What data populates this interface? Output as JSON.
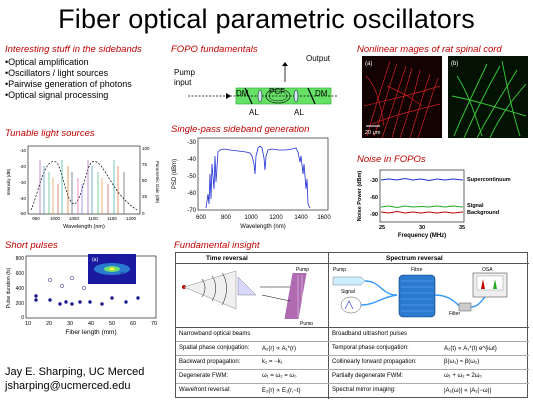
{
  "title": "Fiber optical parametric oscillators",
  "sidebands": {
    "heading": "Interesting stuff in the sidebands",
    "items": [
      "•Optical amplification",
      "•Oscillators / light sources",
      "•Pairwise generation of photons",
      "•Optical signal processing"
    ]
  },
  "tunable": {
    "heading": "Tunable light sources",
    "xlabel": "Wavelength (nm)",
    "yleft": "Intensity (dB)",
    "yright": "Parametric Gain (dB)",
    "xticks": [
      "950",
      "1000",
      "1050",
      "1100",
      "1150",
      "1200"
    ],
    "ylticks": [
      "-10",
      "-20",
      "-30",
      "-40",
      "-50"
    ],
    "yrticks": [
      "100",
      "75",
      "50",
      "25",
      "0"
    ]
  },
  "short_pulses": {
    "heading": "Short pulses",
    "xlabel": "Fiber length (mm)",
    "ylabel": "Pulse duration (fs)",
    "xticks": [
      "10",
      "20",
      "30",
      "40",
      "50",
      "60",
      "70"
    ],
    "yticks": [
      "800",
      "600",
      "400",
      "200",
      "0"
    ],
    "inset_label": "(a)"
  },
  "fopo": {
    "heading": "FOPO fundamentals",
    "output": "Output",
    "pump": "Pump",
    "input": "input",
    "dm1": "DM",
    "dm2": "DM",
    "pcf": "PCF",
    "al1": "AL",
    "al2": "AL"
  },
  "single_pass": {
    "heading": "Single-pass sideband generation",
    "ylabel": "PSD (dBm)",
    "xlabel": "Wavelength (nm)",
    "xticks": [
      "600",
      "800",
      "1000",
      "1200",
      "1400",
      "1600"
    ],
    "yticks": [
      "-30",
      "-40",
      "-50",
      "-60",
      "-70"
    ]
  },
  "nonlinear": {
    "heading": "Nonlinear mages of rat spinal cord",
    "label_a": "(a)",
    "label_b": "(b)",
    "scale": "20 μm"
  },
  "noise": {
    "heading": "Noise in FOPOs",
    "ylabel": "Noise Power (dBm)",
    "xlabel": "Frequency (MHz)",
    "xticks": [
      "25",
      "30",
      "35"
    ],
    "yticks": [
      "-30",
      "-60",
      "-90"
    ],
    "legend": [
      "Supercontinuum",
      "Signal",
      "Background"
    ]
  },
  "insight": {
    "heading": "Fundamental insight",
    "time_reversal": "Time reversal",
    "spectrum_reversal": "Spectrum reversal",
    "pump": "Pump",
    "fibre": "Fibre",
    "osa": "OSA",
    "signal": "Signal",
    "filter": "Filter",
    "left_rows": [
      {
        "label": "Narrowband optical beams",
        "eq": ""
      },
      {
        "label": "Spatial phase conjugation:",
        "eq": "A₂(r) ∝ A₁*(r)"
      },
      {
        "label": "Backward propagation:",
        "eq": "k₂ = −k₁"
      },
      {
        "label": "Degenerate FWM:",
        "eq": "ω₁ = ω₂ = ω₀"
      },
      {
        "label": "Wavefront reversal:",
        "eq": "E₂(r) ∝ E₁(r,−t)"
      }
    ],
    "right_rows": [
      {
        "label": "Broadband ultrashort pulses",
        "eq": ""
      },
      {
        "label": "Temporal phase conjugation:",
        "eq": "A₂(t) ∝ A₁*(t) e^{iωt}"
      },
      {
        "label": "Collinearly forward propagation:",
        "eq": "β(ω₁) ≈ β(ω₂)"
      },
      {
        "label": "Partially degenerate FWM:",
        "eq": "ω₁ + ω₂ = 2ω₀"
      },
      {
        "label": "Spectral mirror imaging:",
        "eq": "|A₂(ω)| ∝ |A₁(−ω)|"
      }
    ]
  },
  "author": {
    "name": "Jay E. Sharping, UC Merced",
    "email": "jsharping@ucmerced.edu"
  },
  "colors": {
    "heading": "#c00000",
    "blue": "#1e2fd6",
    "green": "#22aa22"
  }
}
